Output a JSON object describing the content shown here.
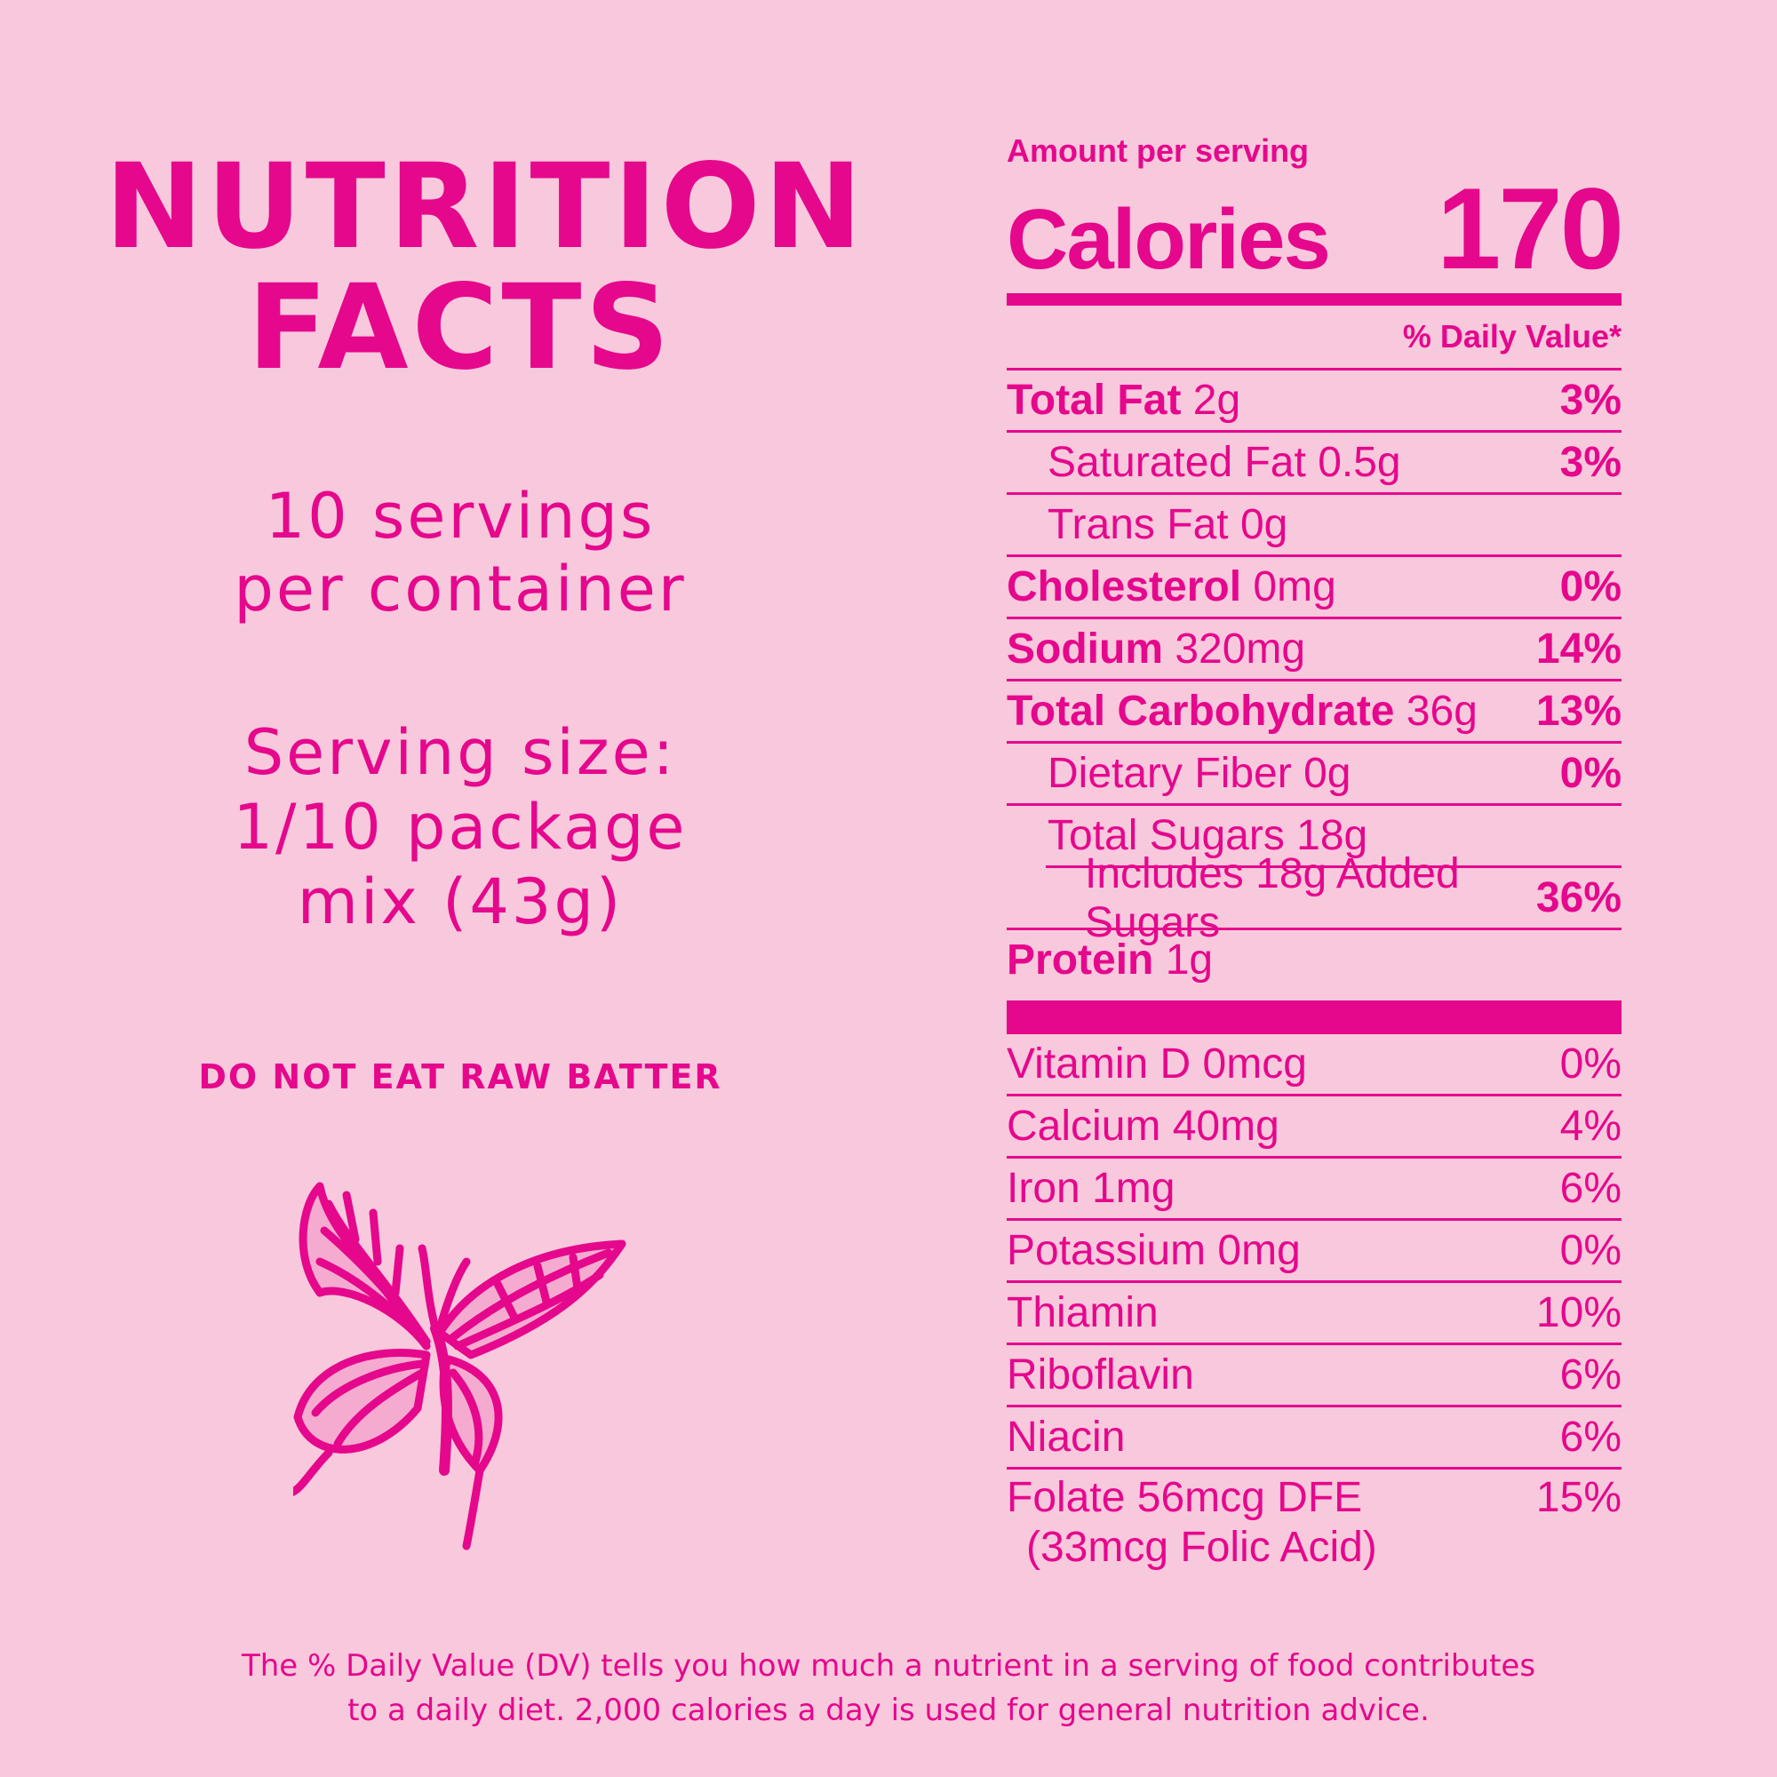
{
  "title": {
    "line1": "NUTRITION",
    "line2": "FACTS"
  },
  "servings": {
    "line1": "10 servings",
    "line2": "per container"
  },
  "serving_size": {
    "line1": "Serving size:",
    "line2": "1/10 package",
    "line3": "mix (43g)"
  },
  "warning": "DO NOT EAT RAW BATTER",
  "icons": {
    "butterfly": "butterfly-icon"
  },
  "panel": {
    "amount_label": "Amount per serving",
    "calories_label": "Calories",
    "calories_value": "170",
    "dv_header": "% Daily Value*",
    "nutrients": [
      {
        "name": "Total Fat",
        "amount": "2g",
        "pct": "3%"
      },
      {
        "name": "Saturated Fat",
        "amount": "0.5g",
        "pct": "3%"
      },
      {
        "name": "Trans Fat",
        "amount": "0g",
        "pct": ""
      },
      {
        "name": "Cholesterol",
        "amount": "0mg",
        "pct": "0%"
      },
      {
        "name": "Sodium",
        "amount": "320mg",
        "pct": "14%"
      },
      {
        "name": "Total Carbohydrate",
        "amount": "36g",
        "pct": "13%"
      },
      {
        "name": "Dietary Fiber",
        "amount": "0g",
        "pct": "0%"
      },
      {
        "name": "Total Sugars",
        "amount": "18g",
        "pct": ""
      },
      {
        "name": "Includes 18g Added Sugars",
        "amount": "",
        "pct": "36%"
      },
      {
        "name": "Protein",
        "amount": "1g",
        "pct": ""
      }
    ],
    "vitamins": [
      {
        "label": "Vitamin D 0mcg",
        "pct": "0%"
      },
      {
        "label": "Calcium 40mg",
        "pct": "4%"
      },
      {
        "label": "Iron 1mg",
        "pct": "6%"
      },
      {
        "label": "Potassium 0mg",
        "pct": "0%"
      },
      {
        "label": "Thiamin",
        "pct": "10%"
      },
      {
        "label": "Riboflavin",
        "pct": "6%"
      },
      {
        "label": "Niacin",
        "pct": "6%"
      },
      {
        "label": "Folate 56mcg DFE",
        "sub": "(33mcg Folic Acid)",
        "pct": "15%"
      }
    ]
  },
  "footer": {
    "line1": "The % Daily Value (DV) tells you how much a nutrient in a serving of food contributes",
    "line2": "to a daily diet. 2,000 calories a day is used for general nutrition advice."
  },
  "colors": {
    "background": "#f8c8dc",
    "accent": "#e5078c"
  }
}
